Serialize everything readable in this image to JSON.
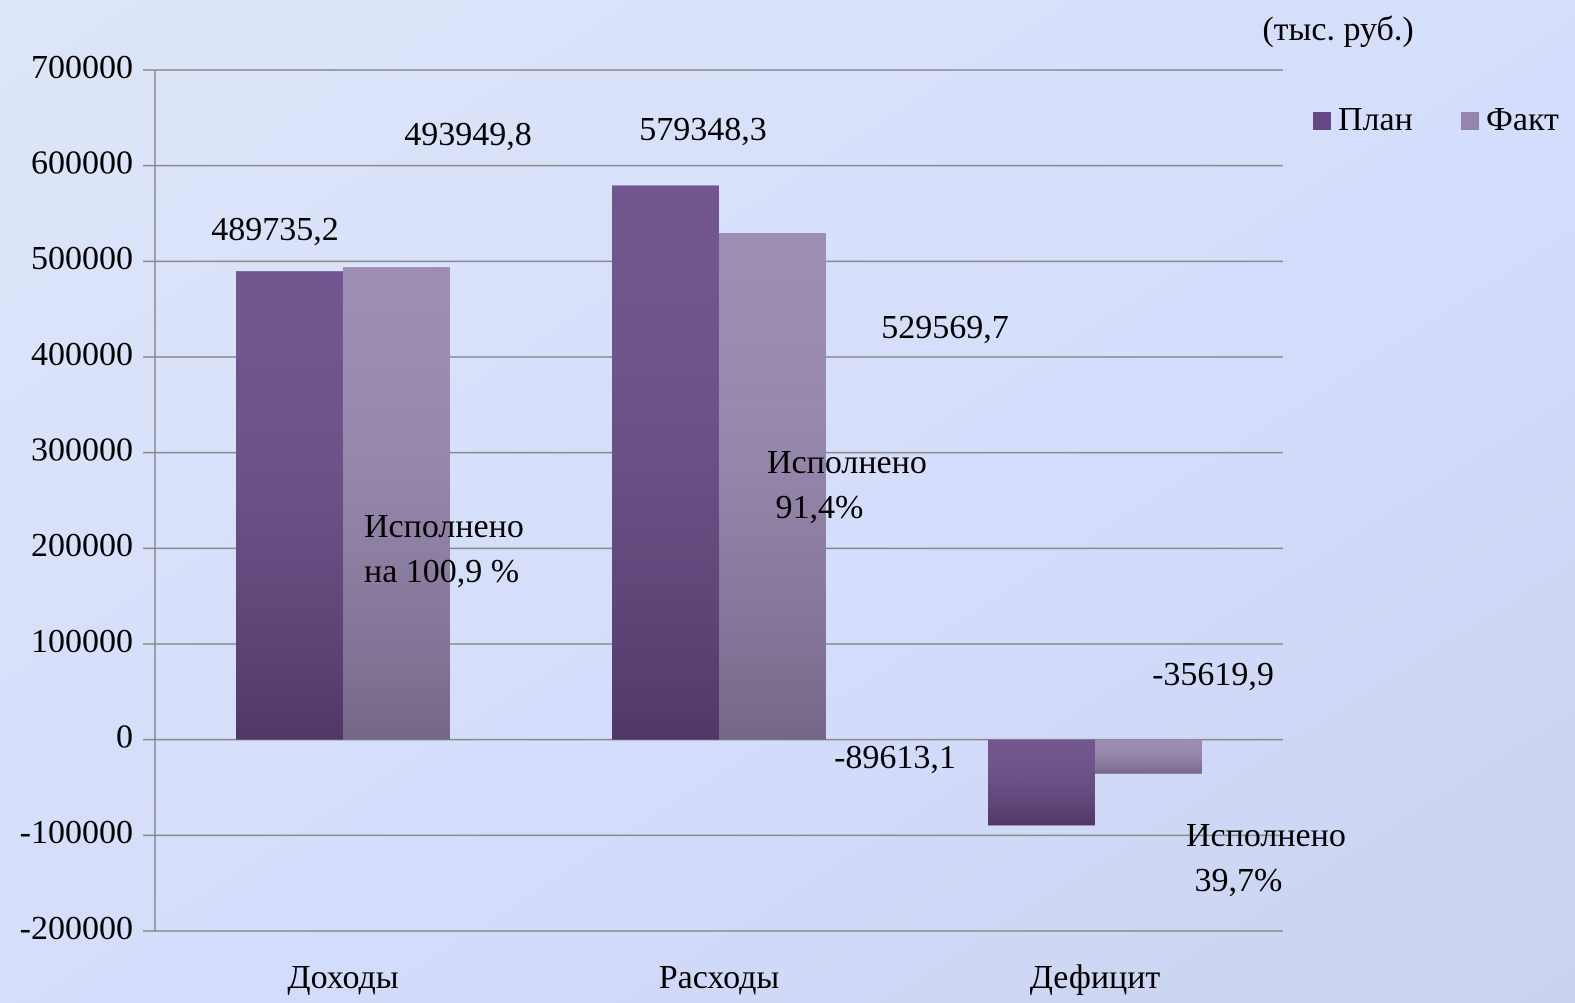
{
  "chart_data": {
    "type": "bar",
    "unit_label": "(тыс. руб.)",
    "categories": [
      "Доходы",
      "Расходы",
      "Дефицит"
    ],
    "series": [
      {
        "name": "План",
        "color": "#654785",
        "values": [
          489735.2,
          579348.3,
          -89613.1
        ],
        "value_labels": [
          "489735,2",
          "579348,3",
          "-89613,1"
        ]
      },
      {
        "name": "Факт",
        "color": "#9584ae",
        "values": [
          493949.8,
          529569.7,
          -35619.9
        ],
        "value_labels": [
          "493949,8",
          "529569,7",
          "-35619,9"
        ]
      }
    ],
    "annotations": [
      [
        "Исполнено",
        "на 100,9 %"
      ],
      [
        "Исполнено",
        " 91,4%"
      ],
      [
        "Исполнено",
        " 39,7%"
      ]
    ],
    "ylim": [
      -200000,
      700000
    ],
    "yticks": [
      -200000,
      -100000,
      0,
      100000,
      200000,
      300000,
      400000,
      500000,
      600000,
      700000
    ],
    "grid": true,
    "legend": "top-right"
  }
}
